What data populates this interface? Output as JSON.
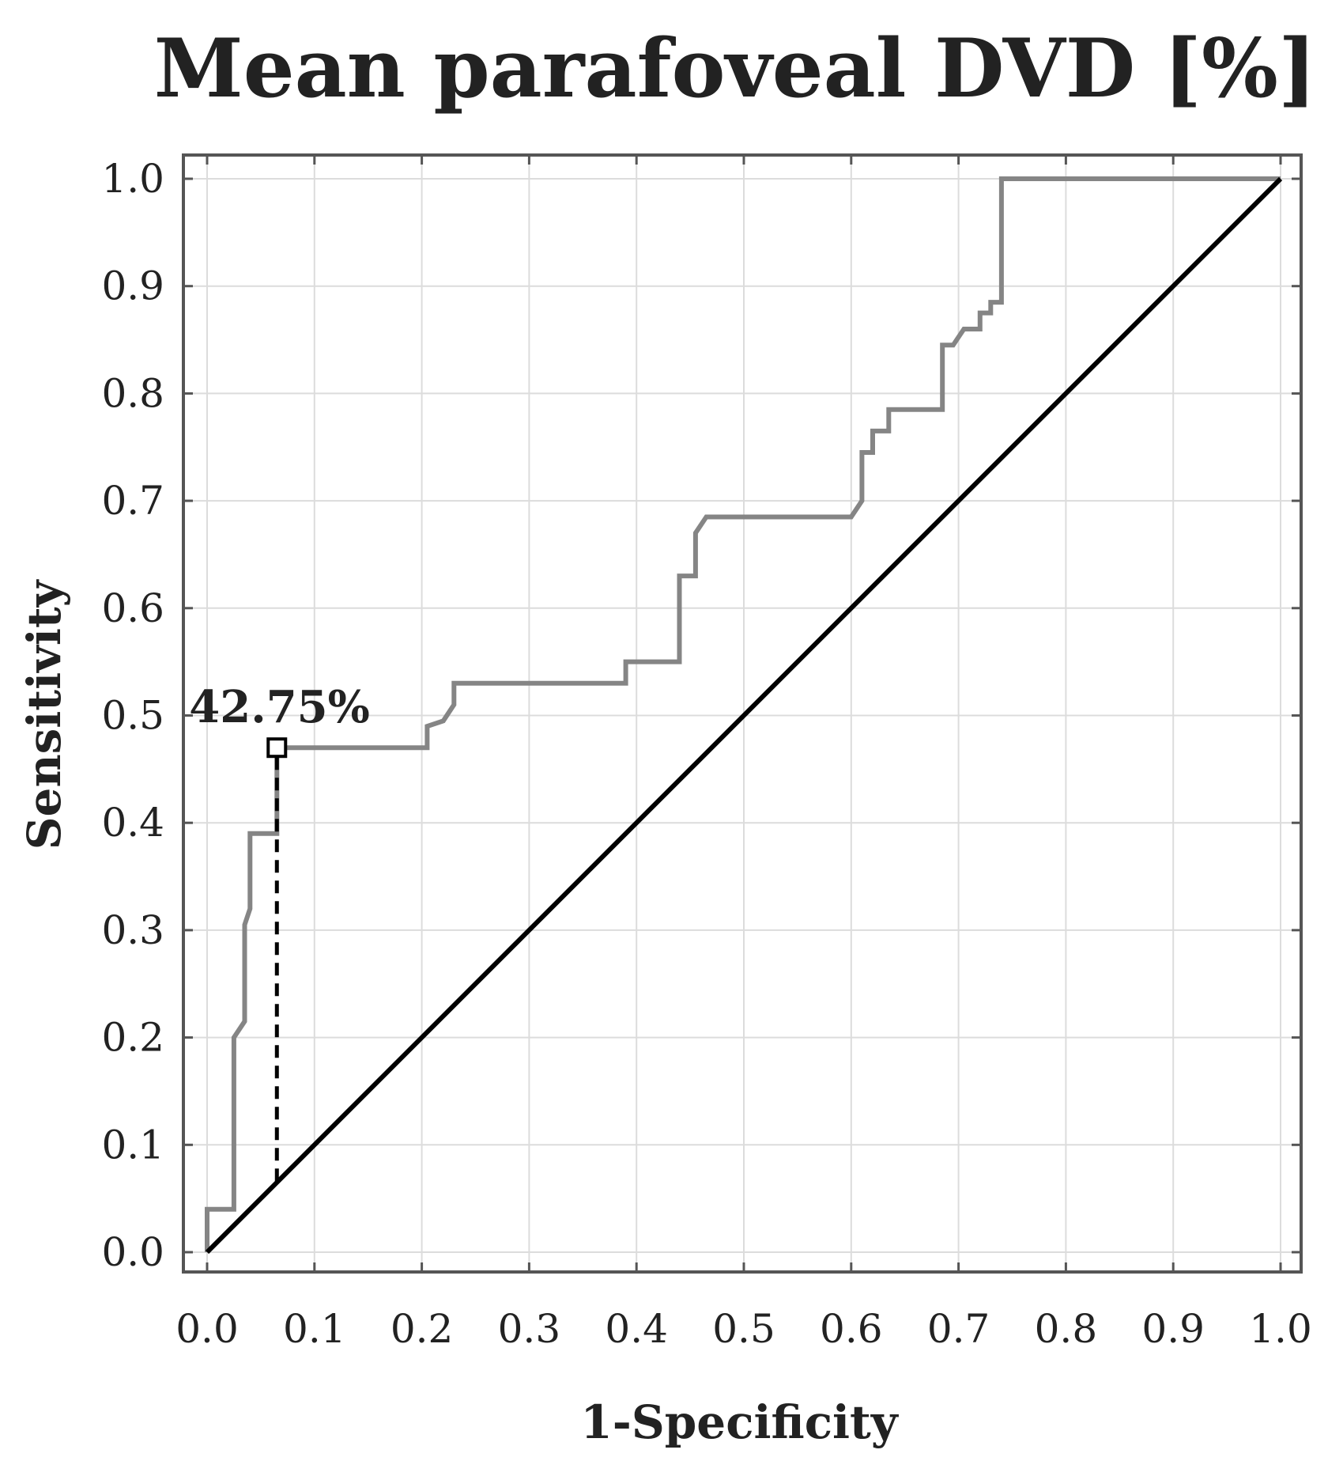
{
  "chart_data": {
    "type": "line",
    "title": "Mean parafoveal DVD [%]",
    "xlabel": "1-Specificity",
    "ylabel": "Sensitivity",
    "xlim": [
      0,
      1
    ],
    "ylim": [
      0,
      1
    ],
    "grid": true,
    "x_ticks": [
      "0.0",
      "0.1",
      "0.2",
      "0.3",
      "0.4",
      "0.5",
      "0.6",
      "0.7",
      "0.8",
      "0.9",
      "1.0"
    ],
    "y_ticks": [
      "0.0",
      "0.1",
      "0.2",
      "0.3",
      "0.4",
      "0.5",
      "0.6",
      "0.7",
      "0.8",
      "0.9",
      "1.0"
    ],
    "series": [
      {
        "name": "ROC curve",
        "color": "#858585",
        "x": [
          0,
          0,
          0.025,
          0.025,
          0.035,
          0.035,
          0.04,
          0.04,
          0.065,
          0.065,
          0.065,
          0.205,
          0.205,
          0.22,
          0.23,
          0.23,
          0.39,
          0.39,
          0.44,
          0.44,
          0.455,
          0.455,
          0.465,
          0.6,
          0.61,
          0.61,
          0.62,
          0.62,
          0.635,
          0.635,
          0.685,
          0.685,
          0.695,
          0.705,
          0.72,
          0.72,
          0.73,
          0.73,
          0.74,
          0.74,
          1.0
        ],
        "y": [
          0,
          0.04,
          0.04,
          0.2,
          0.215,
          0.305,
          0.32,
          0.39,
          0.39,
          0.41,
          0.47,
          0.47,
          0.49,
          0.495,
          0.51,
          0.53,
          0.53,
          0.55,
          0.55,
          0.63,
          0.63,
          0.67,
          0.685,
          0.685,
          0.7,
          0.745,
          0.745,
          0.765,
          0.765,
          0.785,
          0.785,
          0.845,
          0.845,
          0.86,
          0.86,
          0.875,
          0.875,
          0.885,
          0.885,
          1.0,
          1.0
        ]
      },
      {
        "name": "Reference line",
        "color": "#000000",
        "x": [
          0,
          1
        ],
        "y": [
          0,
          1
        ]
      }
    ],
    "cutoff": {
      "label": "42.75%",
      "x": 0.065,
      "y": 0.47,
      "color": "#000000"
    }
  }
}
